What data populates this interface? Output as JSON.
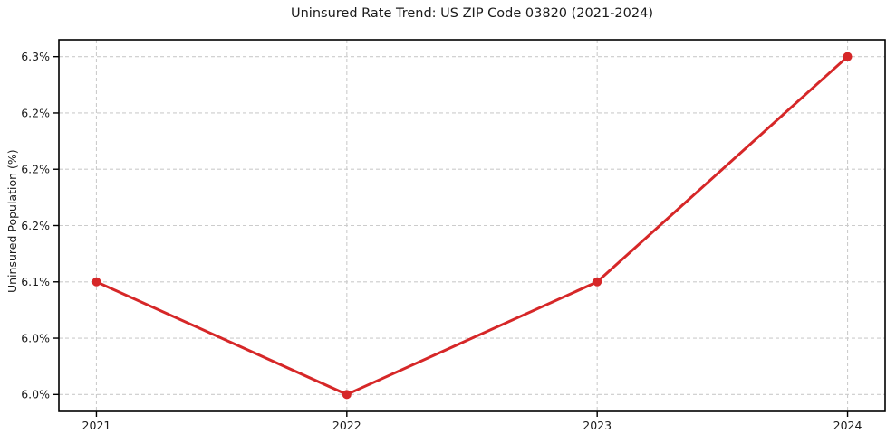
{
  "figure": {
    "background": "#ffffff"
  },
  "chart_data": {
    "type": "line",
    "title": "Uninsured Rate Trend: US ZIP Code 03820 (2021-2024)",
    "xlabel": "",
    "ylabel": "Uninsured Population (%)",
    "x": [
      2021,
      2022,
      2023,
      2024
    ],
    "values": [
      6.1,
      6.0,
      6.1,
      6.3
    ],
    "xlim": [
      2020.85,
      2024.15
    ],
    "ylim": [
      5.985,
      6.315
    ],
    "xticks": [
      {
        "value": 2021,
        "label": "2021"
      },
      {
        "value": 2022,
        "label": "2022"
      },
      {
        "value": 2023,
        "label": "2023"
      },
      {
        "value": 2024,
        "label": "2024"
      }
    ],
    "yticks": [
      {
        "value": 6.0,
        "label": "6.0%"
      },
      {
        "value": 6.05,
        "label": "6.0%"
      },
      {
        "value": 6.1,
        "label": "6.1%"
      },
      {
        "value": 6.15,
        "label": "6.2%"
      },
      {
        "value": 6.2,
        "label": "6.2%"
      },
      {
        "value": 6.25,
        "label": "6.2%"
      },
      {
        "value": 6.3,
        "label": "6.3%"
      }
    ],
    "grid": true,
    "grid_linestyle": "dashed",
    "legend": "none",
    "marker": "circle",
    "line_color": "#d62728",
    "marker_color": "#d62728",
    "grid_color": "#cccccc",
    "spine_color": "#000000",
    "text_color": "#1a1a1a"
  }
}
